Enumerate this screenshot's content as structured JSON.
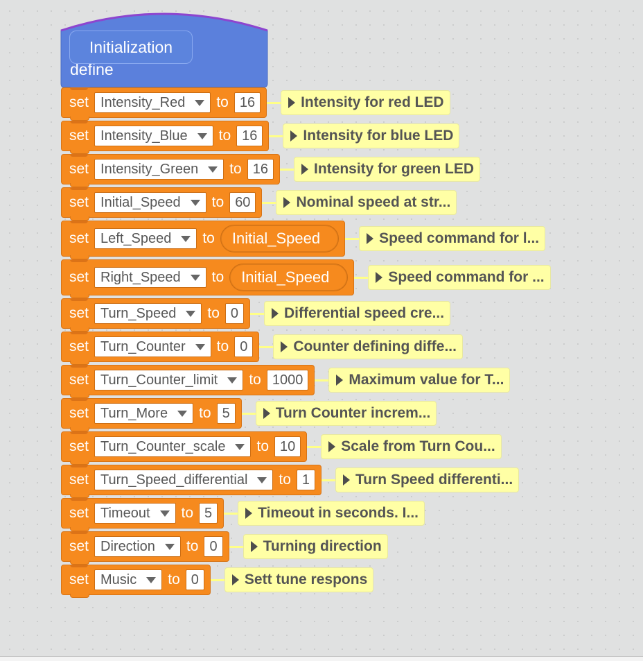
{
  "define": {
    "keyword": "define",
    "name": "Initialization"
  },
  "blocks": [
    {
      "set": "set",
      "var": "Intensity_Red",
      "to": "to",
      "value": "16",
      "comment": "Intensity for red LED"
    },
    {
      "set": "set",
      "var": "Intensity_Blue",
      "to": "to",
      "value": "16",
      "comment": "Intensity for blue LED"
    },
    {
      "set": "set",
      "var": "Intensity_Green",
      "to": "to",
      "value": "16",
      "comment": "Intensity for green LED"
    },
    {
      "set": "set",
      "var": "Initial_Speed",
      "to": "to",
      "value": "60",
      "comment": "Nominal speed at str..."
    },
    {
      "set": "set",
      "var": "Left_Speed",
      "to": "to",
      "reporter": "Initial_Speed",
      "comment": "Speed command for l..."
    },
    {
      "set": "set",
      "var": "Right_Speed",
      "to": "to",
      "reporter": "Initial_Speed",
      "comment": "Speed command for ..."
    },
    {
      "set": "set",
      "var": "Turn_Speed",
      "to": "to",
      "value": "0",
      "comment": "Differential speed cre..."
    },
    {
      "set": "set",
      "var": "Turn_Counter",
      "to": "to",
      "value": "0",
      "comment": "Counter defining diffe..."
    },
    {
      "set": "set",
      "var": "Turn_Counter_limit",
      "to": "to",
      "value": "1000",
      "comment": "Maximum value for T..."
    },
    {
      "set": "set",
      "var": "Turn_More",
      "to": "to",
      "value": "5",
      "comment": "Turn Counter increm..."
    },
    {
      "set": "set",
      "var": "Turn_Counter_scale",
      "to": "to",
      "value": "10",
      "comment": "Scale from Turn Cou..."
    },
    {
      "set": "set",
      "var": "Turn_Speed_differential",
      "to": "to",
      "value": "1",
      "comment": "Turn Speed differenti..."
    },
    {
      "set": "set",
      "var": "Timeout",
      "to": "to",
      "value": "5",
      "comment": "Timeout in seconds. I..."
    },
    {
      "set": "set",
      "var": "Direction",
      "to": "to",
      "value": "0",
      "comment": "Turning direction"
    },
    {
      "set": "set",
      "var": "Music",
      "to": "to",
      "value": "0",
      "comment": "Sett tune respons"
    }
  ],
  "colors": {
    "control_block": "#f68a1e",
    "define_block": "#5b80dc",
    "comment": "#ffffa5",
    "canvas": "#e0e1e1"
  },
  "icons": [
    "dropdown-caret-icon",
    "comment-expand-triangle-icon"
  ]
}
